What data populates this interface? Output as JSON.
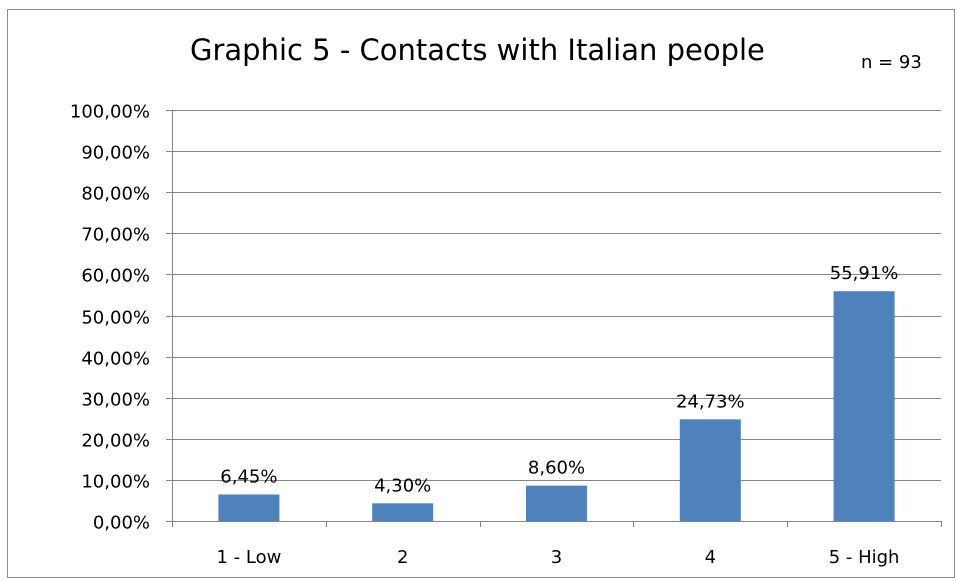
{
  "chart_data": {
    "type": "bar",
    "title": "Graphic 5 - Contacts with Italian people",
    "annotation": "n = 93",
    "categories": [
      "1 - Low",
      "2",
      "3",
      "4",
      "5 - High"
    ],
    "values": [
      6.45,
      4.3,
      8.6,
      24.73,
      55.91
    ],
    "value_labels": [
      "6,45%",
      "4,30%",
      "8,60%",
      "24,73%",
      "55,91%"
    ],
    "xlabel": "",
    "ylabel": "",
    "ylim": [
      0,
      100
    ],
    "yticks": [
      0,
      10,
      20,
      30,
      40,
      50,
      60,
      70,
      80,
      90,
      100
    ],
    "ytick_labels": [
      "0,00%",
      "10,00%",
      "20,00%",
      "30,00%",
      "40,00%",
      "50,00%",
      "60,00%",
      "70,00%",
      "80,00%",
      "90,00%",
      "100,00%"
    ],
    "grid": true,
    "legend": "none",
    "bar_color": "#4f81bd",
    "grid_color": "#868686"
  }
}
